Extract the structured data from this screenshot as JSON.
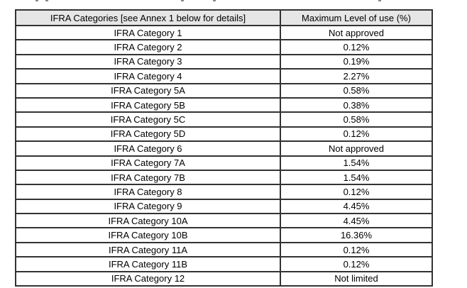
{
  "page": {
    "background_color": "#ffffff",
    "text_color": "#000000"
  },
  "table": {
    "border_color": "#333333",
    "header_bg_color": "#e6e6e6",
    "headers": [
      "IFRA Categories [see Annex 1 below for details]",
      "Maximum Level of use (%)"
    ],
    "rows": [
      {
        "category": "IFRA Category 1",
        "max_level": "Not approved"
      },
      {
        "category": "IFRA Category 2",
        "max_level": "0.12%"
      },
      {
        "category": "IFRA Category 3",
        "max_level": "0.19%"
      },
      {
        "category": "IFRA Category 4",
        "max_level": "2.27%"
      },
      {
        "category": "IFRA Category 5A",
        "max_level": "0.58%"
      },
      {
        "category": "IFRA Category 5B",
        "max_level": "0.38%"
      },
      {
        "category": "IFRA Category 5C",
        "max_level": "0.58%"
      },
      {
        "category": "IFRA Category 5D",
        "max_level": "0.12%"
      },
      {
        "category": "IFRA Category 6",
        "max_level": "Not approved"
      },
      {
        "category": "IFRA Category 7A",
        "max_level": "1.54%"
      },
      {
        "category": "IFRA Category 7B",
        "max_level": "1.54%"
      },
      {
        "category": "IFRA Category 8",
        "max_level": "0.12%"
      },
      {
        "category": "IFRA Category 9",
        "max_level": "4.45%"
      },
      {
        "category": "IFRA Category 10A",
        "max_level": "4.45%"
      },
      {
        "category": "IFRA Category 10B",
        "max_level": "16.36%"
      },
      {
        "category": "IFRA Category 11A",
        "max_level": "0.12%"
      },
      {
        "category": "IFRA Category 11B",
        "max_level": "0.12%"
      },
      {
        "category": "IFRA Category 12",
        "max_level": "Not limited"
      }
    ]
  }
}
